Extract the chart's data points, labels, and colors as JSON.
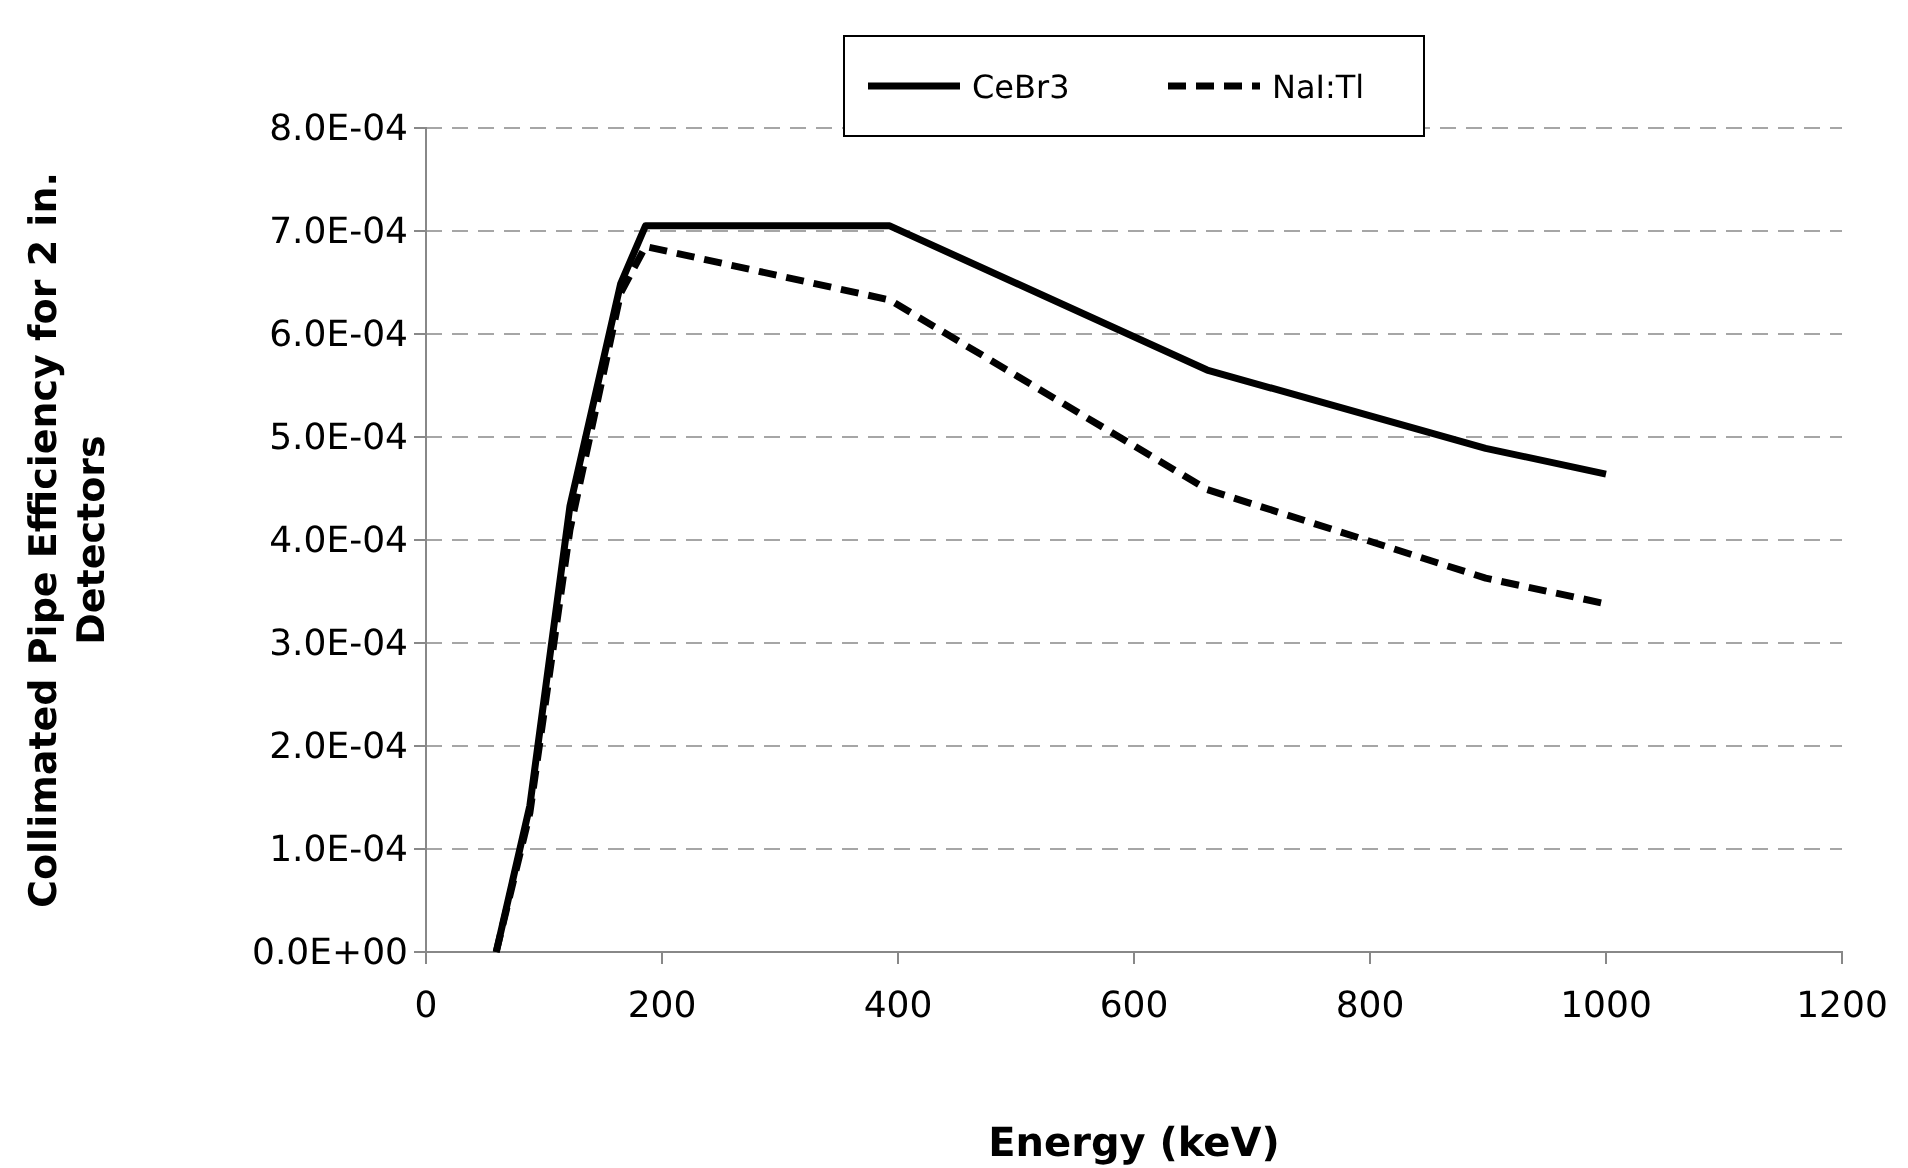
{
  "chart_data": {
    "type": "line",
    "xlabel": "Energy (keV)",
    "ylabel": "Collimated Pipe Efficiency for 2 in. Detectors",
    "x": [
      59.5,
      88,
      122,
      165,
      186,
      393,
      662,
      898,
      1000
    ],
    "series": [
      {
        "name": "CeBr3",
        "color": "#000000",
        "line_style": "solid",
        "values": [
          0,
          0.000142,
          0.000433,
          0.000649,
          0.000705,
          0.000705,
          0.000565,
          0.000489,
          0.000464
        ]
      },
      {
        "name": "NaI:Tl",
        "color": "#000000",
        "line_style": "dashed",
        "values": [
          0,
          0.000135,
          0.00041,
          0.00064,
          0.000685,
          0.000633,
          0.000449,
          0.000363,
          0.000338
        ]
      }
    ],
    "xlim": [
      0,
      1200
    ],
    "xticks": [
      0,
      200,
      400,
      600,
      800,
      1000,
      1200
    ],
    "ylim": [
      0,
      0.0008
    ],
    "yticks": [
      {
        "value": 0,
        "label": "0.0E+00"
      },
      {
        "value": 0.0001,
        "label": "1.0E-04"
      },
      {
        "value": 0.0002,
        "label": "2.0E-04"
      },
      {
        "value": 0.0003,
        "label": "3.0E-04"
      },
      {
        "value": 0.0004,
        "label": "4.0E-04"
      },
      {
        "value": 0.0005,
        "label": "5.0E-04"
      },
      {
        "value": 0.0006,
        "label": "6.0E-04"
      },
      {
        "value": 0.0007,
        "label": "7.0E-04"
      },
      {
        "value": 0.0008,
        "label": "8.0E-04"
      }
    ],
    "grid": "y",
    "legend": "top",
    "marker": "none"
  }
}
